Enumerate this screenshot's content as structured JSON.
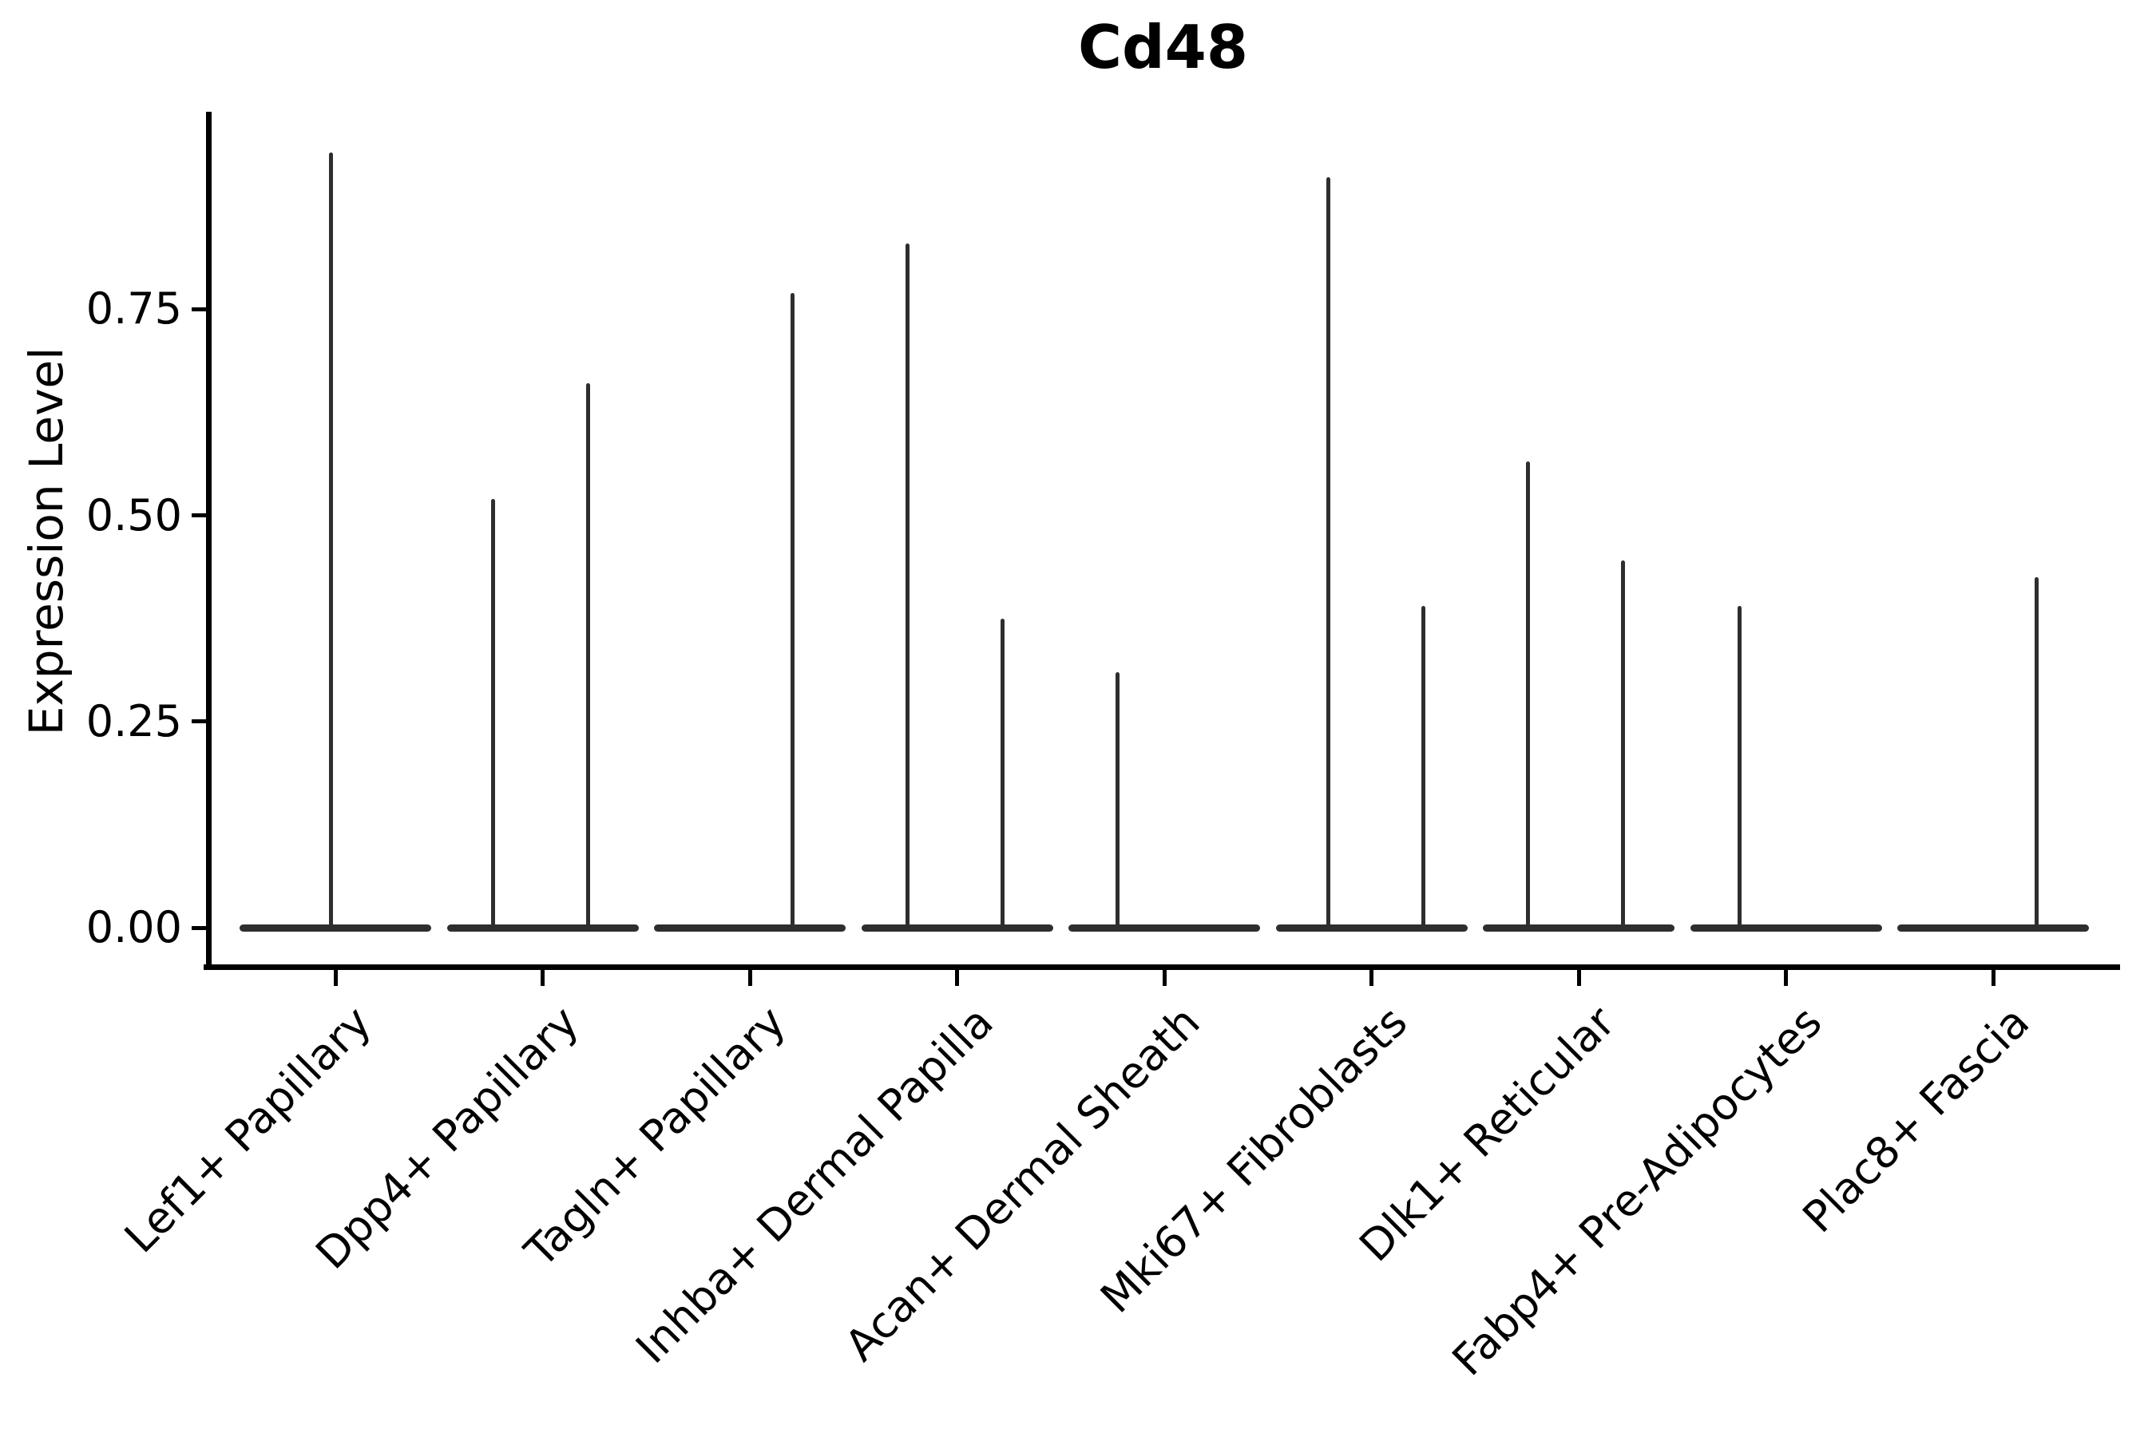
{
  "chart_data": {
    "type": "violin",
    "title": "Cd48",
    "ylabel": "Expression Level",
    "xlabel": "",
    "ytick_labels": [
      "0.00",
      "0.25",
      "0.50",
      "0.75"
    ],
    "yticks": [
      0,
      0.25,
      0.5,
      0.75
    ],
    "ylim": [
      0,
      0.99
    ],
    "grid": false,
    "legend": "none",
    "categories": [
      "Lef1+ Papillary",
      "Dpp4+ Papillary",
      "Tagln+ Papillary",
      "Inhba+ Dermal Papilla",
      "Acan+ Dermal Sheath",
      "Mki67+ Fibroblasts",
      "Dlk1+ Reticular",
      "Fabp4+ Pre-Adipocytes",
      "Plac8+ Fascia"
    ],
    "violins": [
      {
        "category": "Lef1+ Papillary",
        "baseline_value": 0,
        "spikes": [
          {
            "offset": -0.02,
            "value": 0.94
          }
        ]
      },
      {
        "category": "Dpp4+ Papillary",
        "baseline_value": 0,
        "spikes": [
          {
            "offset": -0.24,
            "value": 0.52
          },
          {
            "offset": 0.22,
            "value": 0.66
          }
        ]
      },
      {
        "category": "Tagln+ Papillary",
        "baseline_value": 0,
        "spikes": [
          {
            "offset": 0.205,
            "value": 0.77
          }
        ]
      },
      {
        "category": "Inhba+ Dermal Papilla",
        "baseline_value": 0,
        "spikes": [
          {
            "offset": -0.24,
            "value": 0.83
          },
          {
            "offset": 0.22,
            "value": 0.375
          }
        ]
      },
      {
        "category": "Acan+ Dermal Sheath",
        "baseline_value": 0,
        "spikes": [
          {
            "offset": -0.225,
            "value": 0.31
          }
        ]
      },
      {
        "category": "Mki67+ Fibroblasts",
        "baseline_value": 0,
        "spikes": [
          {
            "offset": -0.21,
            "value": 0.91
          },
          {
            "offset": 0.25,
            "value": 0.39
          }
        ]
      },
      {
        "category": "Dlk1+ Reticular",
        "baseline_value": 0,
        "spikes": [
          {
            "offset": -0.243,
            "value": 0.565
          },
          {
            "offset": 0.215,
            "value": 0.445
          }
        ]
      },
      {
        "category": "Fabp4+ Pre-Adipocytes",
        "baseline_value": 0,
        "spikes": [
          {
            "offset": -0.225,
            "value": 0.39
          }
        ]
      },
      {
        "category": "Plac8+ Fascia",
        "baseline_value": 0,
        "spikes": [
          {
            "offset": 0.21,
            "value": 0.425
          }
        ]
      }
    ],
    "colors": {
      "violin": "#2e2e2e",
      "axis": "#000000",
      "text": "#000000",
      "background": "#ffffff"
    }
  }
}
